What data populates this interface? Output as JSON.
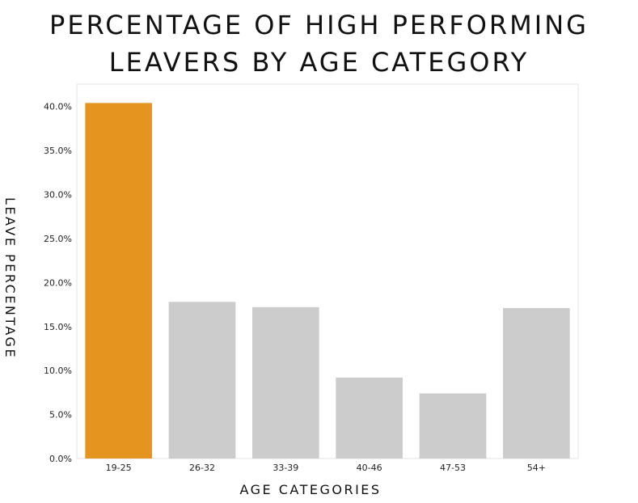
{
  "chart_data": {
    "type": "bar",
    "title_lines": [
      "PERCENTAGE OF HIGH PERFORMING",
      "LEAVERS BY AGE CATEGORY"
    ],
    "xlabel": "AGE CATEGORIES",
    "ylabel": "LEAVE PERCENTAGE",
    "categories": [
      "19-25",
      "26-32",
      "33-39",
      "40-46",
      "47-53",
      "54+"
    ],
    "values": [
      40.4,
      17.8,
      17.2,
      9.2,
      7.4,
      17.1
    ],
    "ylim": [
      0,
      42.5
    ],
    "yticks": [
      0,
      5,
      10,
      15,
      20,
      25,
      30,
      35,
      40
    ],
    "ytick_labels": [
      "0.0%",
      "5.0%",
      "10.0%",
      "15.0%",
      "20.0%",
      "25.0%",
      "30.0%",
      "35.0%",
      "40.0%"
    ],
    "grid": false,
    "colors": {
      "highlight": "#E39520",
      "default": "#CCCCCC",
      "highlight_category": "19-25"
    }
  }
}
